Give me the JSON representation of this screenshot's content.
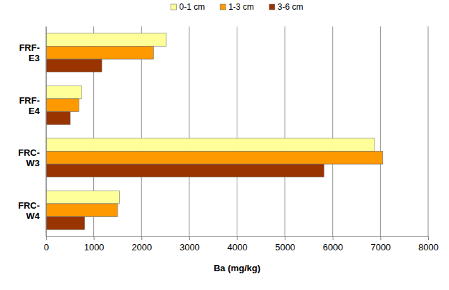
{
  "chart_data": {
    "type": "bar",
    "orientation": "horizontal",
    "categories": [
      "FRF-E3",
      "FRF-E4",
      "FRC-W3",
      "FRC-W4"
    ],
    "series": [
      {
        "name": "0-1 cm",
        "color": "#ffff99",
        "values": [
          2520,
          750,
          6880,
          1540
        ]
      },
      {
        "name": "1-3 cm",
        "color": "#ff9900",
        "values": [
          2250,
          690,
          7050,
          1500
        ]
      },
      {
        "name": "3-6 cm",
        "color": "#993300",
        "values": [
          1170,
          510,
          5820,
          810
        ]
      }
    ],
    "x_label": "Ba (mg/kg)",
    "xlim": [
      0,
      8000
    ],
    "xticks": [
      0,
      1000,
      2000,
      3000,
      4000,
      5000,
      6000,
      7000,
      8000
    ],
    "grid": true,
    "legend": "top"
  }
}
